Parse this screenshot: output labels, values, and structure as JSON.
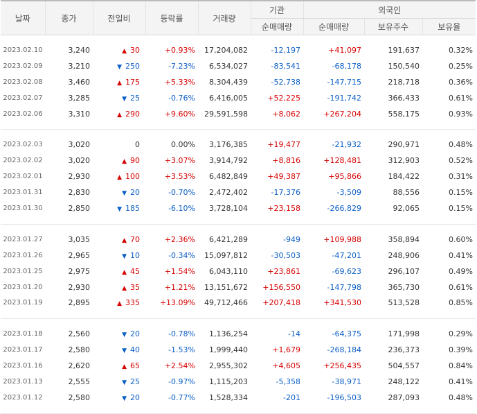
{
  "headers": {
    "date": "날짜",
    "close": "종가",
    "diff": "전일비",
    "rate": "등락률",
    "volume": "거래량",
    "institution": "기관",
    "foreign": "외국인",
    "inst_net": "순매매량",
    "foreign_net": "순매매량",
    "foreign_holding": "보유주수",
    "foreign_ratio": "보유율"
  },
  "icons": {
    "up": "triangle-up-icon",
    "down": "triangle-down-icon"
  },
  "colors": {
    "up": "#d60000",
    "down": "#0b5fc6"
  },
  "groups": [
    [
      {
        "date": "2023.02.10",
        "close": "3,240",
        "dir": "up",
        "diff": "30",
        "rate": "+0.93%",
        "volume": "17,204,082",
        "inst": "-12,197",
        "foreign_net": "+41,097",
        "holding": "191,637",
        "ratio": "0.32%"
      },
      {
        "date": "2023.02.09",
        "close": "3,210",
        "dir": "down",
        "diff": "250",
        "rate": "-7.23%",
        "volume": "6,534,027",
        "inst": "-83,541",
        "foreign_net": "-68,178",
        "holding": "150,540",
        "ratio": "0.25%"
      },
      {
        "date": "2023.02.08",
        "close": "3,460",
        "dir": "up",
        "diff": "175",
        "rate": "+5.33%",
        "volume": "8,304,439",
        "inst": "-52,738",
        "foreign_net": "-147,715",
        "holding": "218,718",
        "ratio": "0.36%"
      },
      {
        "date": "2023.02.07",
        "close": "3,285",
        "dir": "down",
        "diff": "25",
        "rate": "-0.76%",
        "volume": "6,416,005",
        "inst": "+52,225",
        "foreign_net": "-191,742",
        "holding": "366,433",
        "ratio": "0.61%"
      },
      {
        "date": "2023.02.06",
        "close": "3,310",
        "dir": "up",
        "diff": "290",
        "rate": "+9.60%",
        "volume": "29,591,598",
        "inst": "+8,062",
        "foreign_net": "+267,204",
        "holding": "558,175",
        "ratio": "0.93%"
      }
    ],
    [
      {
        "date": "2023.02.03",
        "close": "3,020",
        "dir": "none",
        "diff": "0",
        "rate": "0.00%",
        "volume": "3,176,385",
        "inst": "+19,477",
        "foreign_net": "-21,932",
        "holding": "290,971",
        "ratio": "0.48%"
      },
      {
        "date": "2023.02.02",
        "close": "3,020",
        "dir": "up",
        "diff": "90",
        "rate": "+3.07%",
        "volume": "3,914,792",
        "inst": "+8,816",
        "foreign_net": "+128,481",
        "holding": "312,903",
        "ratio": "0.52%"
      },
      {
        "date": "2023.02.01",
        "close": "2,930",
        "dir": "up",
        "diff": "100",
        "rate": "+3.53%",
        "volume": "6,482,849",
        "inst": "+49,387",
        "foreign_net": "+95,866",
        "holding": "184,422",
        "ratio": "0.31%"
      },
      {
        "date": "2023.01.31",
        "close": "2,830",
        "dir": "down",
        "diff": "20",
        "rate": "-0.70%",
        "volume": "2,472,402",
        "inst": "-17,376",
        "foreign_net": "-3,509",
        "holding": "88,556",
        "ratio": "0.15%"
      },
      {
        "date": "2023.01.30",
        "close": "2,850",
        "dir": "down",
        "diff": "185",
        "rate": "-6.10%",
        "volume": "3,728,104",
        "inst": "+23,158",
        "foreign_net": "-266,829",
        "holding": "92,065",
        "ratio": "0.15%"
      }
    ],
    [
      {
        "date": "2023.01.27",
        "close": "3,035",
        "dir": "up",
        "diff": "70",
        "rate": "+2.36%",
        "volume": "6,421,289",
        "inst": "-949",
        "foreign_net": "+109,988",
        "holding": "358,894",
        "ratio": "0.60%"
      },
      {
        "date": "2023.01.26",
        "close": "2,965",
        "dir": "down",
        "diff": "10",
        "rate": "-0.34%",
        "volume": "15,097,812",
        "inst": "-30,503",
        "foreign_net": "-47,201",
        "holding": "248,906",
        "ratio": "0.41%"
      },
      {
        "date": "2023.01.25",
        "close": "2,975",
        "dir": "up",
        "diff": "45",
        "rate": "+1.54%",
        "volume": "6,043,110",
        "inst": "+23,861",
        "foreign_net": "-69,623",
        "holding": "296,107",
        "ratio": "0.49%"
      },
      {
        "date": "2023.01.20",
        "close": "2,930",
        "dir": "up",
        "diff": "35",
        "rate": "+1.21%",
        "volume": "13,151,672",
        "inst": "+156,550",
        "foreign_net": "-147,798",
        "holding": "365,730",
        "ratio": "0.61%"
      },
      {
        "date": "2023.01.19",
        "close": "2,895",
        "dir": "up",
        "diff": "335",
        "rate": "+13.09%",
        "volume": "49,712,466",
        "inst": "+207,418",
        "foreign_net": "+341,530",
        "holding": "513,528",
        "ratio": "0.85%"
      }
    ],
    [
      {
        "date": "2023.01.18",
        "close": "2,560",
        "dir": "down",
        "diff": "20",
        "rate": "-0.78%",
        "volume": "1,136,254",
        "inst": "-14",
        "foreign_net": "-64,375",
        "holding": "171,998",
        "ratio": "0.29%"
      },
      {
        "date": "2023.01.17",
        "close": "2,580",
        "dir": "down",
        "diff": "40",
        "rate": "-1.53%",
        "volume": "1,999,440",
        "inst": "+1,679",
        "foreign_net": "-268,184",
        "holding": "236,373",
        "ratio": "0.39%"
      },
      {
        "date": "2023.01.16",
        "close": "2,620",
        "dir": "up",
        "diff": "65",
        "rate": "+2.54%",
        "volume": "2,955,302",
        "inst": "+4,605",
        "foreign_net": "+256,435",
        "holding": "504,557",
        "ratio": "0.84%"
      },
      {
        "date": "2023.01.13",
        "close": "2,555",
        "dir": "down",
        "diff": "25",
        "rate": "-0.97%",
        "volume": "1,115,203",
        "inst": "-5,358",
        "foreign_net": "-38,971",
        "holding": "248,122",
        "ratio": "0.41%"
      },
      {
        "date": "2023.01.12",
        "close": "2,580",
        "dir": "down",
        "diff": "20",
        "rate": "-0.77%",
        "volume": "1,528,334",
        "inst": "-201",
        "foreign_net": "-196,503",
        "holding": "287,093",
        "ratio": "0.48%"
      }
    ]
  ]
}
